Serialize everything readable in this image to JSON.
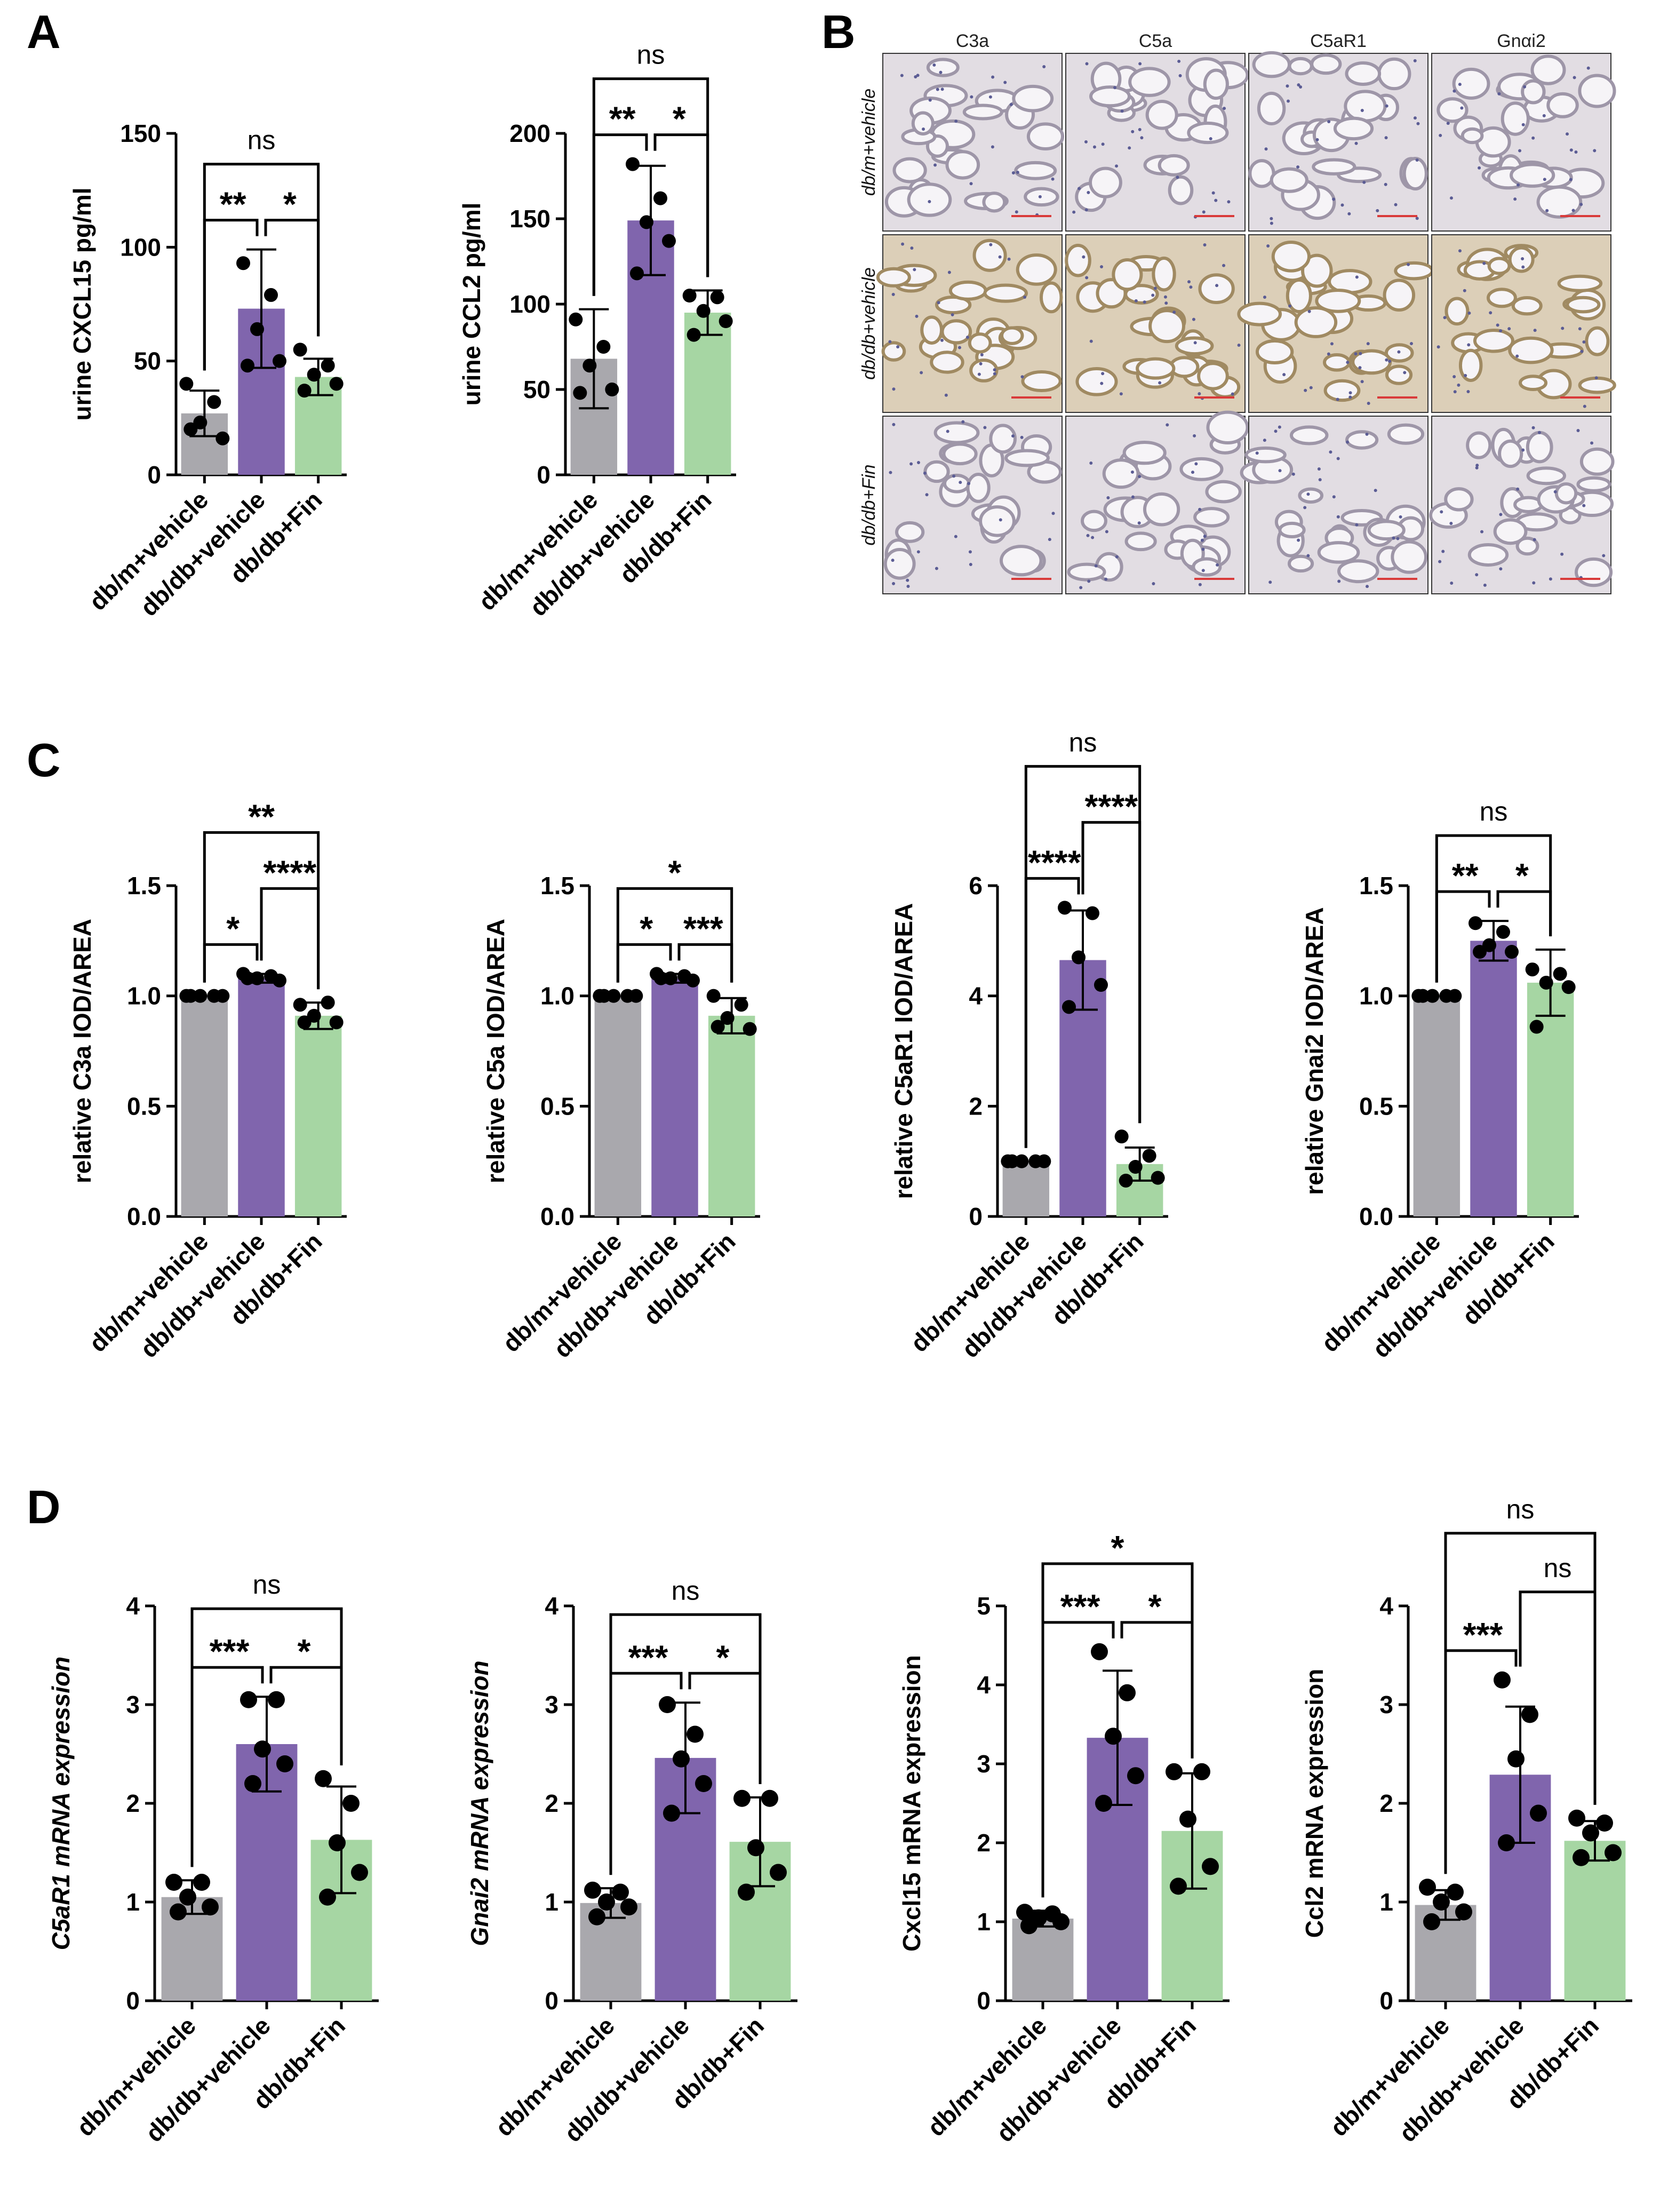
{
  "panels": [
    {
      "letter": "A"
    },
    {
      "letter": "B"
    },
    {
      "letter": "C"
    },
    {
      "letter": "D"
    }
  ],
  "colors": {
    "vehicle": "#A9A8AD",
    "dbdb": "#8065AD",
    "fin": "#A6D6A3",
    "dot": "#000000",
    "scale_bar": "#D93A3A",
    "tissue": "#E6E1E8"
  },
  "groups": [
    "db/m+vehicle",
    "db/db+vehicle",
    "db/db+Fin"
  ],
  "micrographs": {
    "columns": [
      "C3a",
      "C5a",
      "C5aR1",
      "Gnαi2"
    ],
    "rows": [
      "db/m+vehicle",
      "db/db+vehicle",
      "db/db+Fin"
    ]
  },
  "chart_data": [
    {
      "id": "A1",
      "panel": "A",
      "type": "bar",
      "categories": [
        "db/m+vehicle",
        "db/db+vehicle",
        "db/db+Fin"
      ],
      "values": [
        27,
        73,
        43
      ],
      "sd": [
        10,
        26,
        8
      ],
      "points": [
        [
          40,
          32,
          23,
          16,
          20
        ],
        [
          93,
          79,
          64,
          50,
          48
        ],
        [
          55,
          48,
          44,
          40,
          37
        ]
      ],
      "ylabel": "urine CXCL15 pg/ml",
      "ylabel_italic": false,
      "ylim": [
        0,
        150
      ],
      "yticks": [
        "0",
        "50",
        "100",
        "150"
      ],
      "annotations": [
        {
          "from": 0,
          "to": 1,
          "label": "**",
          "level": 1
        },
        {
          "from": 1,
          "to": 2,
          "label": "*",
          "level": 1
        },
        {
          "from": 0,
          "to": 2,
          "label": "ns",
          "level": 2
        }
      ]
    },
    {
      "id": "A2",
      "panel": "A",
      "type": "bar",
      "categories": [
        "db/m+vehicle",
        "db/db+vehicle",
        "db/db+Fin"
      ],
      "values": [
        68,
        149,
        95
      ],
      "sd": [
        29,
        32,
        13
      ],
      "points": [
        [
          91,
          75,
          64,
          50,
          48
        ],
        [
          182,
          162,
          148,
          137,
          118
        ],
        [
          105,
          104,
          96,
          90,
          82
        ]
      ],
      "ylabel": "urine CCL2 pg/ml",
      "ylabel_italic": false,
      "ylim": [
        0,
        200
      ],
      "yticks": [
        "0",
        "50",
        "100",
        "150",
        "200"
      ],
      "annotations": [
        {
          "from": 0,
          "to": 1,
          "label": "**",
          "level": 1
        },
        {
          "from": 1,
          "to": 2,
          "label": "*",
          "level": 1
        },
        {
          "from": 0,
          "to": 2,
          "label": "ns",
          "level": 2
        }
      ]
    },
    {
      "id": "C1",
      "panel": "C",
      "type": "bar",
      "categories": [
        "db/m+vehicle",
        "db/db+vehicle",
        "db/db+Fin"
      ],
      "values": [
        1.0,
        1.08,
        0.91
      ],
      "sd": [
        0,
        0.02,
        0.06
      ],
      "points": [
        [
          1.0,
          1.0,
          1.0,
          1.0,
          1.0
        ],
        [
          1.1,
          1.09,
          1.08,
          1.07,
          1.08
        ],
        [
          0.96,
          0.97,
          0.91,
          0.88,
          0.88
        ]
      ],
      "ylabel": "relative C3a IOD/AREA",
      "ylabel_italic": false,
      "ylim": [
        0,
        1.5
      ],
      "yticks": [
        "0.0",
        "0.5",
        "1.0",
        "1.5"
      ],
      "annotations": [
        {
          "from": 0,
          "to": 1,
          "label": "*",
          "level": 1
        },
        {
          "from": 1,
          "to": 2,
          "label": "****",
          "level": 2
        },
        {
          "from": 0,
          "to": 2,
          "label": "**",
          "level": 3
        }
      ]
    },
    {
      "id": "C2",
      "panel": "C",
      "type": "bar",
      "categories": [
        "db/m+vehicle",
        "db/db+vehicle",
        "db/db+Fin"
      ],
      "values": [
        1.0,
        1.08,
        0.91
      ],
      "sd": [
        0,
        0.02,
        0.08
      ],
      "points": [
        [
          1.0,
          1.0,
          1.0,
          1.0,
          1.0
        ],
        [
          1.1,
          1.09,
          1.08,
          1.07,
          1.08
        ],
        [
          1.0,
          0.96,
          0.9,
          0.85,
          0.86
        ]
      ],
      "ylabel": "relative C5a IOD/AREA",
      "ylabel_italic": false,
      "ylim": [
        0,
        1.5
      ],
      "yticks": [
        "0.0",
        "0.5",
        "1.0",
        "1.5"
      ],
      "annotations": [
        {
          "from": 0,
          "to": 1,
          "label": "*",
          "level": 1
        },
        {
          "from": 1,
          "to": 2,
          "label": "***",
          "level": 1
        },
        {
          "from": 0,
          "to": 2,
          "label": "*",
          "level": 2
        }
      ]
    },
    {
      "id": "C3",
      "panel": "C",
      "type": "bar",
      "categories": [
        "db/m+vehicle",
        "db/db+vehicle",
        "db/db+Fin"
      ],
      "values": [
        1.0,
        4.65,
        0.95
      ],
      "sd": [
        0,
        0.9,
        0.3
      ],
      "points": [
        [
          1.0,
          1.0,
          1.0,
          1.0,
          1.0
        ],
        [
          5.6,
          5.5,
          4.7,
          4.2,
          3.8
        ],
        [
          1.45,
          1.1,
          0.9,
          0.7,
          0.65
        ]
      ],
      "ylabel": "relative C5aR1 IOD/AREA",
      "ylabel_italic": false,
      "ylim": [
        0,
        6
      ],
      "yticks": [
        "0",
        "2",
        "4",
        "6"
      ],
      "annotations": [
        {
          "from": 0,
          "to": 1,
          "label": "****",
          "level": 1
        },
        {
          "from": 1,
          "to": 2,
          "label": "****",
          "level": 2
        },
        {
          "from": 0,
          "to": 2,
          "label": "ns",
          "level": 3
        }
      ]
    },
    {
      "id": "C4",
      "panel": "C",
      "type": "bar",
      "categories": [
        "db/m+vehicle",
        "db/db+vehicle",
        "db/db+Fin"
      ],
      "values": [
        1.0,
        1.25,
        1.06
      ],
      "sd": [
        0,
        0.09,
        0.15
      ],
      "points": [
        [
          1.0,
          1.0,
          1.0,
          1.0,
          1.0
        ],
        [
          1.33,
          1.29,
          1.23,
          1.2,
          1.2
        ],
        [
          1.12,
          1.1,
          1.06,
          1.04,
          0.86
        ]
      ],
      "ylabel": "relative Gnai2  IOD/AREA",
      "ylabel_italic": false,
      "ylim": [
        0,
        1.5
      ],
      "yticks": [
        "0.0",
        "0.5",
        "1.0",
        "1.5"
      ],
      "annotations": [
        {
          "from": 0,
          "to": 1,
          "label": "**",
          "level": 1
        },
        {
          "from": 1,
          "to": 2,
          "label": "*",
          "level": 1
        },
        {
          "from": 0,
          "to": 2,
          "label": "ns",
          "level": 2
        }
      ]
    },
    {
      "id": "D1",
      "panel": "D",
      "type": "bar",
      "categories": [
        "db/m+vehicle",
        "db/db+vehicle",
        "db/db+Fin"
      ],
      "values": [
        1.05,
        2.6,
        1.63
      ],
      "sd": [
        0.17,
        0.48,
        0.54
      ],
      "points": [
        [
          1.2,
          1.2,
          1.05,
          0.95,
          0.9
        ],
        [
          3.05,
          3.05,
          2.55,
          2.4,
          2.2
        ],
        [
          2.25,
          2.0,
          1.6,
          1.3,
          1.05
        ]
      ],
      "ylabel": "C5aR1 mRNA expression",
      "ylabel_italic": true,
      "ylim": [
        0,
        4
      ],
      "yticks": [
        "0",
        "1",
        "2",
        "3",
        "4"
      ],
      "annotations": [
        {
          "from": 0,
          "to": 1,
          "label": "***",
          "level": 1
        },
        {
          "from": 1,
          "to": 2,
          "label": "*",
          "level": 1
        },
        {
          "from": 0,
          "to": 2,
          "label": "ns",
          "level": 2
        }
      ]
    },
    {
      "id": "D2",
      "panel": "D",
      "type": "bar",
      "categories": [
        "db/m+vehicle",
        "db/db+vehicle",
        "db/db+Fin"
      ],
      "values": [
        0.99,
        2.46,
        1.61
      ],
      "sd": [
        0.15,
        0.56,
        0.45
      ],
      "points": [
        [
          1.12,
          1.1,
          1.0,
          0.95,
          0.85
        ],
        [
          3.0,
          2.7,
          2.45,
          2.2,
          1.9
        ],
        [
          2.05,
          2.05,
          1.55,
          1.3,
          1.1
        ]
      ],
      "ylabel": "Gnai2 mRNA expression",
      "ylabel_italic": true,
      "ylim": [
        0,
        4
      ],
      "yticks": [
        "0",
        "1",
        "2",
        "3",
        "4"
      ],
      "annotations": [
        {
          "from": 0,
          "to": 1,
          "label": "***",
          "level": 1
        },
        {
          "from": 1,
          "to": 2,
          "label": "*",
          "level": 1
        },
        {
          "from": 0,
          "to": 2,
          "label": "ns",
          "level": 2
        }
      ]
    },
    {
      "id": "D3",
      "panel": "D",
      "type": "bar",
      "categories": [
        "db/m+vehicle",
        "db/db+vehicle",
        "db/db+Fin"
      ],
      "values": [
        1.04,
        3.33,
        2.15
      ],
      "sd": [
        0.1,
        0.85,
        0.73
      ],
      "points": [
        [
          1.12,
          1.1,
          1.05,
          1.0,
          0.95
        ],
        [
          4.42,
          3.9,
          3.35,
          2.85,
          2.5
        ],
        [
          2.9,
          2.9,
          2.3,
          1.7,
          1.45
        ]
      ],
      "ylabel": "Cxcl15 mRNA expression",
      "ylabel_italic": false,
      "ylabel_italic_part": "Cxcl15",
      "ylim": [
        0,
        5
      ],
      "yticks": [
        "0",
        "1",
        "2",
        "3",
        "4",
        "5"
      ],
      "annotations": [
        {
          "from": 0,
          "to": 1,
          "label": "***",
          "level": 1
        },
        {
          "from": 1,
          "to": 2,
          "label": "*",
          "level": 1
        },
        {
          "from": 0,
          "to": 2,
          "label": "*",
          "level": 2
        }
      ]
    },
    {
      "id": "D4",
      "panel": "D",
      "type": "bar",
      "categories": [
        "db/m+vehicle",
        "db/db+vehicle",
        "db/db+Fin"
      ],
      "values": [
        0.97,
        2.29,
        1.62
      ],
      "sd": [
        0.15,
        0.69,
        0.2
      ],
      "points": [
        [
          1.15,
          1.1,
          1.0,
          0.9,
          0.8
        ],
        [
          3.25,
          2.9,
          2.45,
          1.9,
          1.6
        ],
        [
          1.85,
          1.8,
          1.7,
          1.5,
          1.45
        ]
      ],
      "ylabel": "Ccl2 mRNA expression",
      "ylabel_italic": false,
      "ylabel_italic_part": "Ccl2",
      "ylim": [
        0,
        4
      ],
      "yticks": [
        "0",
        "1",
        "2",
        "3",
        "4"
      ],
      "annotations": [
        {
          "from": 0,
          "to": 1,
          "label": "***",
          "level": 1
        },
        {
          "from": 1,
          "to": 2,
          "label": "ns",
          "level": 2
        },
        {
          "from": 0,
          "to": 2,
          "label": "ns",
          "level": 3
        }
      ]
    }
  ]
}
